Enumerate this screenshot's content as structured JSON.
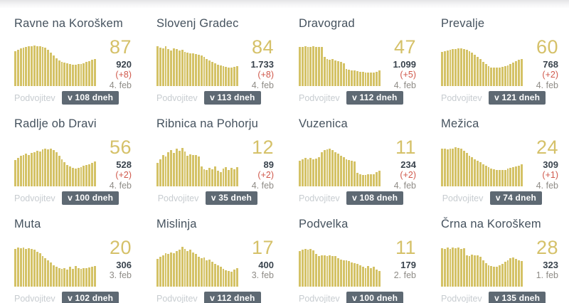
{
  "shared": {
    "doubling_label": "Podvojitev"
  },
  "colors": {
    "bar": "#d4c266",
    "accent_number": "#d5c169",
    "title": "#45525e",
    "total": "#39434d",
    "delta": "#d0584b",
    "date": "#8f8c87",
    "footer_label": "#c7ccd0",
    "badge_bg": "#5e6973",
    "badge_text": "#ffffff"
  },
  "cards": [
    {
      "title": "Ravne na Koroškem",
      "stats": {
        "active": "87",
        "total": "920",
        "delta": "(+8)",
        "date": "4. feb"
      },
      "footer": {
        "badge": "v 108 dneh"
      }
    },
    {
      "title": "Slovenj Gradec",
      "stats": {
        "active": "84",
        "total": "1.733",
        "delta": "(+8)",
        "date": "4. feb"
      },
      "footer": {
        "badge": "v 113 dneh"
      }
    },
    {
      "title": "Dravograd",
      "stats": {
        "active": "47",
        "total": "1.099",
        "delta": "(+5)",
        "date": "4. feb"
      },
      "footer": {
        "badge": "v 112 dneh"
      }
    },
    {
      "title": "Prevalje",
      "stats": {
        "active": "60",
        "total": "768",
        "delta": "(+2)",
        "date": "4. feb"
      },
      "footer": {
        "badge": "v 121 dneh"
      }
    },
    {
      "title": "Radlje ob Dravi",
      "stats": {
        "active": "56",
        "total": "528",
        "delta": "(+2)",
        "date": "4. feb"
      },
      "footer": {
        "badge": "v 100 dneh"
      }
    },
    {
      "title": "Ribnica na Pohorju",
      "stats": {
        "active": "12",
        "total": "89",
        "delta": "(+2)",
        "date": "4. feb"
      },
      "footer": {
        "badge": "v 35 dneh"
      }
    },
    {
      "title": "Vuzenica",
      "stats": {
        "active": "11",
        "total": "234",
        "delta": "(+2)",
        "date": "4. feb"
      },
      "footer": {
        "badge": "v 108 dneh"
      }
    },
    {
      "title": "Mežica",
      "stats": {
        "active": "24",
        "total": "309",
        "delta": "(+1)",
        "date": "4. feb"
      },
      "footer": {
        "badge": "v 74 dneh"
      }
    },
    {
      "title": "Muta",
      "stats": {
        "active": "20",
        "total": "306",
        "delta": "",
        "date": "3. feb"
      },
      "footer": {
        "badge": "v 102 dneh"
      }
    },
    {
      "title": "Mislinja",
      "stats": {
        "active": "17",
        "total": "400",
        "delta": "",
        "date": "3. feb"
      },
      "footer": {
        "badge": "v 112 dneh"
      }
    },
    {
      "title": "Podvelka",
      "stats": {
        "active": "11",
        "total": "179",
        "delta": "",
        "date": "2. feb"
      },
      "footer": {
        "badge": "v 100 dneh"
      }
    },
    {
      "title": "Črna na Koroškem",
      "stats": {
        "active": "28",
        "total": "323",
        "delta": "",
        "date": "1. feb"
      },
      "footer": {
        "badge": "v 135 dneh"
      }
    }
  ],
  "chart_data": [
    {
      "type": "bar",
      "title": "Ravne na Koroškem",
      "unit": "relative-height-percent",
      "axes_labeled": false,
      "values": [
        82,
        85,
        88,
        90,
        92,
        93,
        94,
        95,
        94,
        93,
        92,
        90,
        85,
        78,
        71,
        65,
        60,
        57,
        55,
        53,
        51,
        50,
        50,
        51,
        52,
        54,
        56,
        58,
        61,
        64
      ]
    },
    {
      "type": "bar",
      "title": "Slovenj Gradec",
      "unit": "relative-height-percent",
      "axes_labeled": false,
      "values": [
        93,
        90,
        89,
        94,
        87,
        84,
        88,
        86,
        83,
        85,
        80,
        78,
        77,
        76,
        75,
        74,
        72,
        68,
        64,
        60,
        56,
        53,
        50,
        48,
        46,
        45,
        44,
        44,
        45,
        47
      ]
    },
    {
      "type": "bar",
      "title": "Dravograd",
      "unit": "relative-height-percent",
      "axes_labeled": false,
      "values": [
        92,
        92,
        93,
        92,
        92,
        93,
        92,
        92,
        91,
        68,
        64,
        62,
        63,
        60,
        58,
        56,
        54,
        40,
        38,
        37,
        36,
        35,
        34,
        33,
        32,
        31,
        31,
        32,
        34,
        36
      ]
    },
    {
      "type": "bar",
      "title": "Prevalje",
      "unit": "relative-height-percent",
      "axes_labeled": false,
      "values": [
        80,
        82,
        84,
        85,
        86,
        87,
        88,
        88,
        87,
        85,
        82,
        78,
        73,
        68,
        63,
        57,
        51,
        47,
        44,
        43,
        43,
        44,
        45,
        47,
        49,
        52,
        55,
        58,
        61,
        64
      ]
    },
    {
      "type": "bar",
      "title": "Radlje ob Dravi",
      "unit": "relative-height-percent",
      "axes_labeled": false,
      "values": [
        62,
        67,
        71,
        74,
        76,
        74,
        78,
        80,
        84,
        82,
        86,
        88,
        86,
        88,
        85,
        80,
        72,
        64,
        56,
        50,
        46,
        44,
        42,
        43,
        45,
        48,
        50,
        52,
        55,
        58
      ]
    },
    {
      "type": "bar",
      "title": "Ribnica na Pohorju",
      "unit": "relative-height-percent",
      "axes_labeled": false,
      "values": [
        55,
        64,
        74,
        70,
        80,
        85,
        78,
        88,
        83,
        90,
        82,
        72,
        75,
        73,
        74,
        70,
        46,
        40,
        38,
        43,
        40,
        47,
        36,
        34,
        41,
        45,
        38,
        43,
        40,
        45
      ]
    },
    {
      "type": "bar",
      "title": "Vuzenica",
      "unit": "relative-height-percent",
      "axes_labeled": false,
      "values": [
        60,
        63,
        66,
        64,
        66,
        63,
        65,
        68,
        80,
        85,
        87,
        88,
        85,
        80,
        76,
        72,
        68,
        64,
        62,
        60,
        58,
        31,
        28,
        27,
        27,
        28,
        28,
        29,
        33,
        37
      ]
    },
    {
      "type": "bar",
      "title": "Mežica",
      "unit": "relative-height-percent",
      "axes_labeled": false,
      "values": [
        88,
        88,
        87,
        88,
        89,
        92,
        90,
        88,
        84,
        78,
        72,
        68,
        64,
        60,
        56,
        52,
        48,
        45,
        42,
        40,
        39,
        38,
        38,
        39,
        41,
        43,
        45,
        47,
        49,
        51
      ]
    },
    {
      "type": "bar",
      "title": "Muta",
      "unit": "relative-height-percent",
      "axes_labeled": false,
      "values": [
        88,
        92,
        90,
        91,
        89,
        90,
        88,
        86,
        82,
        78,
        72,
        67,
        62,
        56,
        50,
        46,
        43,
        41,
        44,
        40,
        46,
        42,
        48,
        44,
        42,
        43,
        44,
        45,
        47,
        49
      ]
    },
    {
      "type": "bar",
      "title": "Mislinja",
      "unit": "relative-height-percent",
      "axes_labeled": false,
      "values": [
        65,
        70,
        74,
        78,
        76,
        80,
        78,
        83,
        86,
        93,
        88,
        84,
        87,
        80,
        76,
        70,
        66,
        68,
        62,
        64,
        58,
        54,
        50,
        46,
        42,
        38,
        36,
        35,
        40,
        43
      ]
    },
    {
      "type": "bar",
      "title": "Podvelka",
      "unit": "relative-height-percent",
      "axes_labeled": false,
      "values": [
        84,
        86,
        88,
        87,
        88,
        85,
        76,
        72,
        73,
        74,
        72,
        73,
        72,
        71,
        66,
        64,
        62,
        61,
        60,
        57,
        55,
        54,
        50,
        46,
        44,
        48,
        43,
        46,
        40,
        36
      ]
    },
    {
      "type": "bar",
      "title": "Črna na Koroškem",
      "unit": "relative-height-percent",
      "axes_labeled": false,
      "values": [
        90,
        88,
        91,
        89,
        92,
        90,
        91,
        89,
        90,
        74,
        72,
        75,
        73,
        74,
        70,
        62,
        55,
        50,
        48,
        47,
        46,
        50,
        54,
        58,
        62,
        66,
        68,
        65,
        62,
        60
      ]
    }
  ]
}
